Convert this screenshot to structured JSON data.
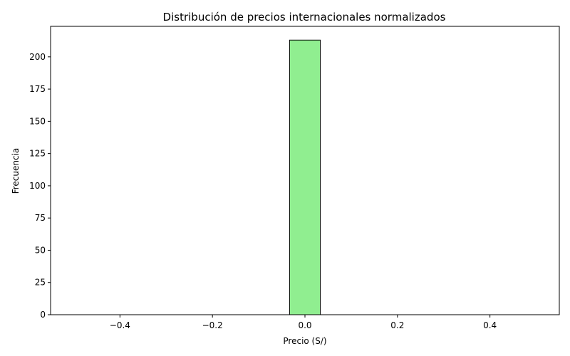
{
  "chart_data": {
    "type": "bar",
    "title": "Distribución de precios internacionales normalizados",
    "xlabel": "Precio (S/)",
    "ylabel": "Frecuencia",
    "bin_width": 0.0667,
    "bins": [
      {
        "x0": -0.5,
        "x1": -0.4333,
        "count": 0
      },
      {
        "x0": -0.4333,
        "x1": -0.3667,
        "count": 0
      },
      {
        "x0": -0.3667,
        "x1": -0.3,
        "count": 0
      },
      {
        "x0": -0.3,
        "x1": -0.2333,
        "count": 0
      },
      {
        "x0": -0.2333,
        "x1": -0.1667,
        "count": 0
      },
      {
        "x0": -0.1667,
        "x1": -0.1,
        "count": 0
      },
      {
        "x0": -0.1,
        "x1": -0.0333,
        "count": 0
      },
      {
        "x0": -0.0333,
        "x1": 0.0333,
        "count": 213
      },
      {
        "x0": 0.0333,
        "x1": 0.1,
        "count": 0
      },
      {
        "x0": 0.1,
        "x1": 0.1667,
        "count": 0
      },
      {
        "x0": 0.1667,
        "x1": 0.2333,
        "count": 0
      },
      {
        "x0": 0.2333,
        "x1": 0.3,
        "count": 0
      },
      {
        "x0": 0.3,
        "x1": 0.3667,
        "count": 0
      },
      {
        "x0": 0.3667,
        "x1": 0.4333,
        "count": 0
      },
      {
        "x0": 0.4333,
        "x1": 0.5,
        "count": 0
      }
    ],
    "xlim": [
      -0.55,
      0.55
    ],
    "ylim": [
      0,
      223.65
    ],
    "xticks": [
      -0.4,
      -0.2,
      0.0,
      0.2,
      0.4
    ],
    "xtick_labels": [
      "−0.4",
      "−0.2",
      "0.0",
      "0.2",
      "0.4"
    ],
    "yticks": [
      0,
      25,
      50,
      75,
      100,
      125,
      150,
      175,
      200
    ],
    "ytick_labels": [
      "0",
      "25",
      "50",
      "75",
      "100",
      "125",
      "150",
      "175",
      "200"
    ],
    "grid": false,
    "legend": "none",
    "bar_color": "#90ee90",
    "edge_color": "#000000"
  }
}
